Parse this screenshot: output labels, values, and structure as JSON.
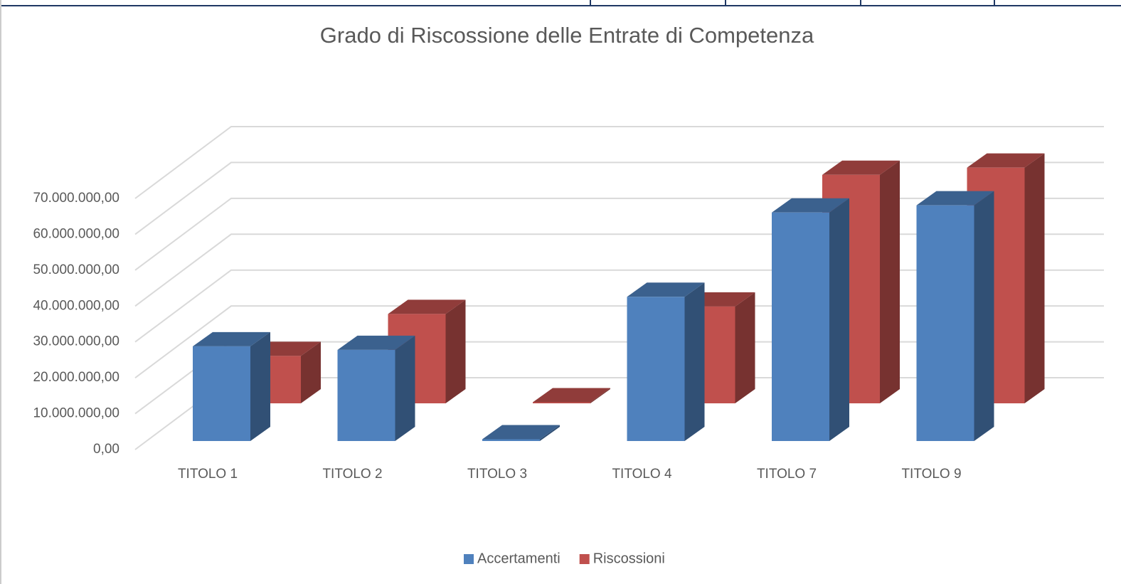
{
  "chart_data": {
    "type": "bar3d",
    "title": "Grado di Riscossione delle Entrate di Competenza",
    "categories": [
      "TITOLO 1",
      "TITOLO 2",
      "TITOLO 3",
      "TITOLO 4",
      "TITOLO 7",
      "TITOLO 9"
    ],
    "series": [
      {
        "name": "Accertamenti",
        "color": "#4f81bd",
        "values": [
          26400000,
          25400000,
          500000,
          40200000,
          63700000,
          65700000
        ]
      },
      {
        "name": "Riscossioni",
        "color": "#c0504d",
        "values": [
          13200000,
          24900000,
          300000,
          27000000,
          63700000,
          65700000
        ]
      }
    ],
    "ylim": [
      0,
      70000000
    ],
    "yticks": [
      {
        "value": 0,
        "label": "0,00"
      },
      {
        "value": 10000000,
        "label": "10.000.000,00"
      },
      {
        "value": 20000000,
        "label": "20.000.000,00"
      },
      {
        "value": 30000000,
        "label": "30.000.000,00"
      },
      {
        "value": 40000000,
        "label": "40.000.000,00"
      },
      {
        "value": 50000000,
        "label": "50.000.000,00"
      },
      {
        "value": 60000000,
        "label": "60.000.000,00"
      },
      {
        "value": 70000000,
        "label": "70.000.000,00"
      }
    ],
    "grid": true,
    "legend": "bottom"
  }
}
